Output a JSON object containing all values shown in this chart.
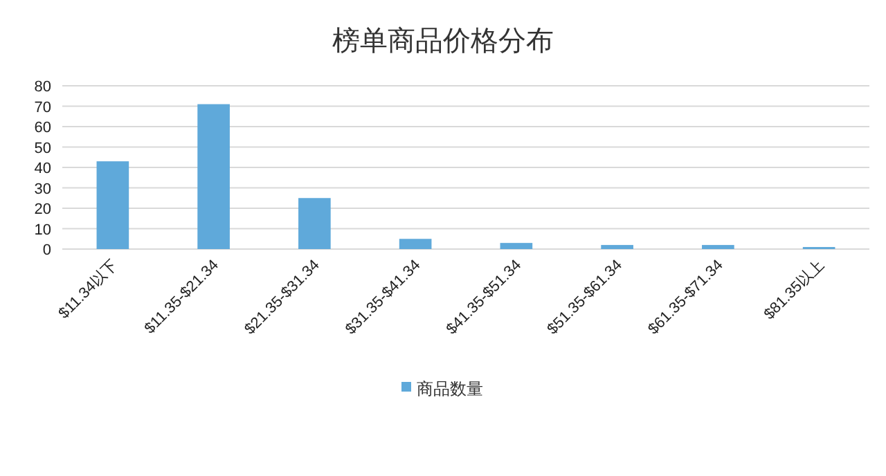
{
  "chart_data": {
    "type": "bar",
    "title": "榜单商品价格分布",
    "categories": [
      "$11.34以下",
      "$11.35-$21.34",
      "$21.35-$31.34",
      "$31.35-$41.34",
      "$41.35-$51.34",
      "$51.35-$61.34",
      "$61.35-$71.34",
      "$81.35以上"
    ],
    "series": [
      {
        "name": "商品数量",
        "color": "#5fa9da",
        "values": [
          43,
          71,
          25,
          5,
          3,
          2,
          2,
          1
        ]
      }
    ],
    "ylim": [
      0,
      80
    ],
    "yticks": [
      0,
      10,
      20,
      30,
      40,
      50,
      60,
      70,
      80
    ],
    "grid": "y",
    "legend": "bottom"
  }
}
